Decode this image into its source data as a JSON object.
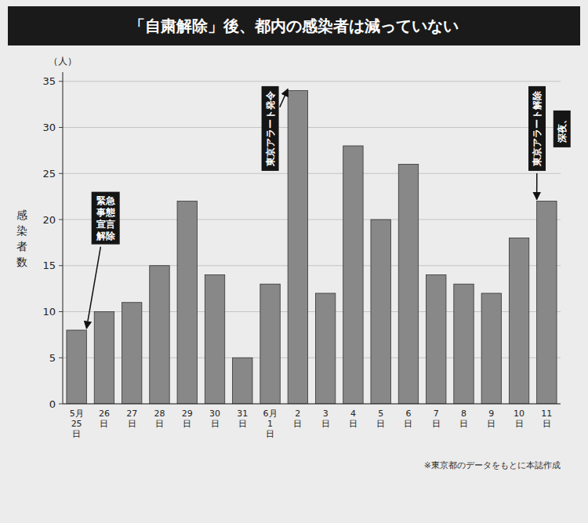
{
  "chart_data": {
    "type": "bar",
    "title": "「自粛解除」後、都内の感染者は減っていない",
    "y_label": "感染者数",
    "y_unit": "（人）",
    "note": "※東京都のデータをもとに本誌作成",
    "categories": [
      "5月\n25\n日",
      "26\n日",
      "27\n日",
      "28\n日",
      "29\n日",
      "30\n日",
      "31\n日",
      "6月\n1\n日",
      "2\n日",
      "3\n日",
      "4\n日",
      "5\n日",
      "6\n日",
      "7\n日",
      "8\n日",
      "9\n日",
      "10\n日",
      "11\n日"
    ],
    "values": [
      8,
      10,
      11,
      15,
      22,
      14,
      5,
      13,
      34,
      12,
      28,
      20,
      26,
      14,
      13,
      12,
      18,
      22
    ],
    "color": "#888888",
    "ylim": [
      0,
      36
    ],
    "yticks": [
      0,
      5,
      10,
      15,
      20,
      25,
      30,
      35
    ],
    "grid": true,
    "annotations": [
      {
        "text": "緊急\n事態\n宣言\n解除",
        "category": "5月\n25\n日"
      },
      {
        "text": "東京アラート発令",
        "category": "2\n日"
      },
      {
        "text": [
          "東京アラート解除",
          "深夜、"
        ],
        "category": "11\n日"
      }
    ]
  }
}
